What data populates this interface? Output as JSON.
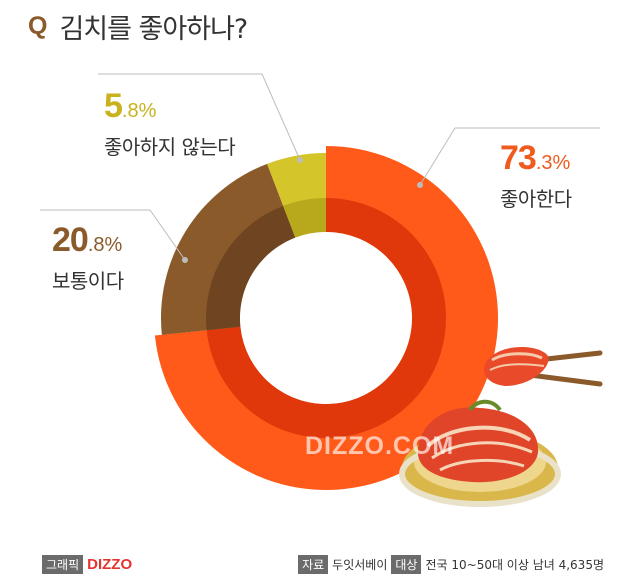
{
  "title": {
    "q": "Q",
    "text": "김치를 좋아하나?"
  },
  "chart_data": {
    "type": "pie",
    "style": "donut",
    "title": "김치를 좋아하나?",
    "slices": [
      {
        "label": "좋아한다",
        "value": 73.3,
        "pct_int": "73",
        "pct_dec": ".3%",
        "color": "#ff5a1a",
        "inner_color": "#e0380a",
        "text_color": "#f05a1e"
      },
      {
        "label": "보통이다",
        "value": 20.8,
        "pct_int": "20",
        "pct_dec": ".8%",
        "color": "#8b5a2b",
        "inner_color": "#6e4520",
        "text_color": "#8b5a2b"
      },
      {
        "label": "좋아하지 않는다",
        "value": 5.8,
        "pct_int": "5",
        "pct_dec": ".8%",
        "color": "#d4c52a",
        "inner_color": "#b8a81c",
        "text_color": "#c9b21e"
      }
    ]
  },
  "watermark": "DIZZO.COM",
  "footer": {
    "graphic_tag": "그래픽",
    "brand": "DIZZO",
    "source_tag": "자료",
    "source": "두잇서베이",
    "target_tag": "대상",
    "target": "전국 10~50대 이상 남녀 4,635명"
  }
}
